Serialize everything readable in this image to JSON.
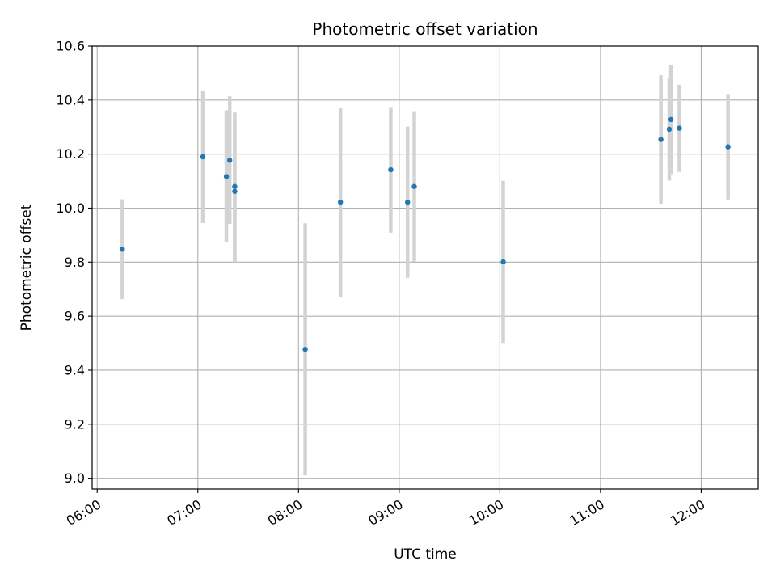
{
  "chart_data": {
    "type": "scatter",
    "title": "Photometric offset variation",
    "xlabel": "UTC time",
    "ylabel": "Photometric offset",
    "x_unit": "UTC time of day (HH:MM)",
    "xlim": [
      "05:57",
      "12:34"
    ],
    "ylim": [
      8.96,
      10.6
    ],
    "x_ticks": [
      "06:00",
      "07:00",
      "08:00",
      "09:00",
      "10:00",
      "11:00",
      "12:00"
    ],
    "y_ticks": [
      "9.0",
      "9.2",
      "9.4",
      "9.6",
      "9.8",
      "10.0",
      "10.2",
      "10.4",
      "10.6"
    ],
    "grid": true,
    "marker_color": "#1f77b4",
    "errorbar_color": "#d3d3d3",
    "points": [
      {
        "x": "06:15",
        "y": 9.848,
        "ylow": 9.663,
        "yhigh": 10.033
      },
      {
        "x": "07:03",
        "y": 10.19,
        "ylow": 9.945,
        "yhigh": 10.435
      },
      {
        "x": "07:17",
        "y": 10.117,
        "ylow": 9.873,
        "yhigh": 10.362
      },
      {
        "x": "07:19",
        "y": 10.177,
        "ylow": 9.942,
        "yhigh": 10.414
      },
      {
        "x": "07:22",
        "y": 10.08,
        "ylow": 9.805,
        "yhigh": 10.354
      },
      {
        "x": "07:22",
        "y": 10.062,
        "ylow": 9.8,
        "yhigh": 10.325
      },
      {
        "x": "08:04",
        "y": 9.477,
        "ylow": 9.01,
        "yhigh": 9.944
      },
      {
        "x": "08:25",
        "y": 10.022,
        "ylow": 9.672,
        "yhigh": 10.372
      },
      {
        "x": "08:55",
        "y": 10.142,
        "ylow": 9.909,
        "yhigh": 10.374
      },
      {
        "x": "09:05",
        "y": 10.022,
        "ylow": 9.742,
        "yhigh": 10.302
      },
      {
        "x": "09:09",
        "y": 10.08,
        "ylow": 9.801,
        "yhigh": 10.359
      },
      {
        "x": "10:02",
        "y": 9.801,
        "ylow": 9.501,
        "yhigh": 10.101
      },
      {
        "x": "11:36",
        "y": 10.254,
        "ylow": 10.016,
        "yhigh": 10.492
      },
      {
        "x": "11:41",
        "y": 10.292,
        "ylow": 10.102,
        "yhigh": 10.482
      },
      {
        "x": "11:42",
        "y": 10.328,
        "ylow": 10.126,
        "yhigh": 10.53
      },
      {
        "x": "11:47",
        "y": 10.296,
        "ylow": 10.134,
        "yhigh": 10.457
      },
      {
        "x": "12:16",
        "y": 10.227,
        "ylow": 10.032,
        "yhigh": 10.422
      }
    ]
  }
}
